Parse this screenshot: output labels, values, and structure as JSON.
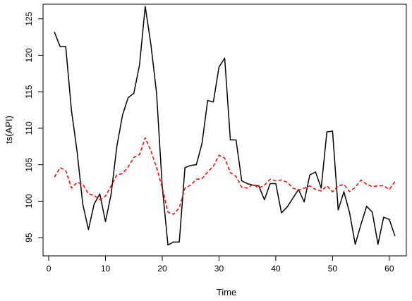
{
  "chart_data": {
    "type": "line",
    "title": "",
    "xlabel": "Time",
    "ylabel": "ts(API)",
    "xlim": [
      -1,
      63
    ],
    "ylim": [
      92.5,
      127
    ],
    "x_ticks": [
      0,
      10,
      20,
      30,
      40,
      50,
      60
    ],
    "y_ticks": [
      95,
      100,
      105,
      110,
      115,
      120,
      125
    ],
    "grid": false,
    "legend": "none",
    "series": [
      {
        "color": "#000000",
        "line_style": "solid",
        "x": [
          1,
          2,
          3,
          4,
          5,
          6,
          7,
          8,
          9,
          10,
          11,
          12,
          13,
          14,
          15,
          16,
          17,
          18,
          19,
          20,
          21,
          22,
          23,
          24,
          25,
          26,
          27,
          28,
          29,
          30,
          31,
          32,
          33,
          34,
          35,
          36,
          37,
          38,
          39,
          40,
          41,
          42,
          43,
          44,
          45,
          46,
          47,
          48,
          49,
          50,
          51,
          52,
          53,
          54,
          55,
          56,
          57,
          58,
          59,
          60,
          61
        ],
        "values": [
          123.2,
          121.2,
          121.2,
          112.5,
          106.8,
          99.6,
          96.1,
          99.6,
          101.0,
          97.2,
          101.0,
          107.5,
          111.8,
          114.2,
          114.8,
          118.7,
          126.7,
          121.5,
          114.8,
          102.0,
          94.0,
          94.4,
          94.4,
          104.6,
          104.9,
          105.0,
          107.9,
          113.8,
          113.6,
          118.4,
          119.6,
          108.4,
          108.4,
          102.8,
          102.4,
          102.2,
          102.1,
          100.2,
          102.4,
          102.4,
          98.4,
          99.2,
          100.4,
          101.6,
          99.9,
          103.6,
          104.0,
          101.8,
          109.5,
          109.6,
          98.8,
          101.3,
          98.4,
          94.1,
          96.8,
          99.3,
          98.5,
          94.1,
          97.8,
          97.5,
          95.2
        ]
      },
      {
        "color": "#ff0000",
        "line_style": "dashed",
        "x": [
          1,
          2,
          3,
          4,
          5,
          6,
          7,
          8,
          9,
          10,
          11,
          12,
          13,
          14,
          15,
          16,
          17,
          18,
          19,
          20,
          21,
          22,
          23,
          24,
          25,
          26,
          27,
          28,
          29,
          30,
          31,
          32,
          33,
          34,
          35,
          36,
          37,
          38,
          39,
          40,
          41,
          42,
          43,
          44,
          45,
          46,
          47,
          48,
          49,
          50,
          51,
          52,
          53,
          54,
          55,
          56,
          57,
          58,
          59,
          60,
          61
        ],
        "values": [
          103.3,
          104.6,
          104.2,
          101.8,
          102.6,
          102.3,
          101.0,
          100.8,
          100.2,
          100.7,
          102.1,
          103.6,
          103.8,
          104.7,
          106.0,
          106.4,
          108.7,
          106.9,
          104.6,
          101.8,
          98.5,
          98.2,
          99.1,
          101.8,
          102.2,
          103.0,
          103.1,
          104.0,
          104.8,
          106.3,
          105.9,
          103.9,
          103.4,
          101.9,
          101.8,
          102.3,
          101.8,
          102.2,
          103.0,
          102.8,
          102.9,
          102.6,
          101.8,
          101.5,
          101.8,
          102.1,
          101.6,
          101.4,
          102.1,
          101.3,
          102.1,
          102.3,
          101.3,
          101.9,
          102.9,
          102.3,
          102.0,
          102.1,
          102.1,
          101.6,
          102.7
        ]
      }
    ]
  }
}
